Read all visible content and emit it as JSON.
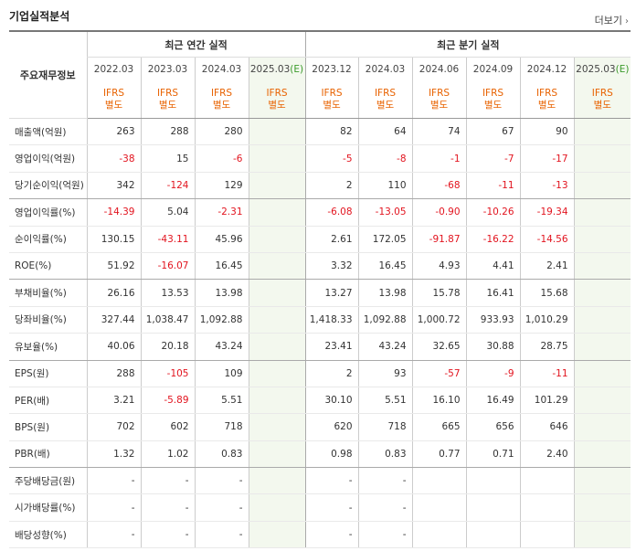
{
  "header": {
    "title": "기업실적분석",
    "more": "더보기",
    "more_arrow": "›"
  },
  "table": {
    "metric_header": "주요재무정보",
    "group_annual": "최근 연간 실적",
    "group_quarter": "최근 분기 실적",
    "periods": [
      {
        "label": "2022.03",
        "acc1": "IFRS",
        "acc2": "별도"
      },
      {
        "label": "2023.03",
        "acc1": "IFRS",
        "acc2": "별도"
      },
      {
        "label": "2024.03",
        "acc1": "IFRS",
        "acc2": "별도"
      },
      {
        "label": "2025.03",
        "est": "(E)",
        "acc1": "IFRS",
        "acc2": "별도"
      },
      {
        "label": "2023.12",
        "acc1": "IFRS",
        "acc2": "별도"
      },
      {
        "label": "2024.03",
        "acc1": "IFRS",
        "acc2": "별도"
      },
      {
        "label": "2024.06",
        "acc1": "IFRS",
        "acc2": "별도"
      },
      {
        "label": "2024.09",
        "acc1": "IFRS",
        "acc2": "별도"
      },
      {
        "label": "2024.12",
        "acc1": "IFRS",
        "acc2": "별도"
      },
      {
        "label": "2025.03",
        "est": "(E)",
        "acc1": "IFRS",
        "acc2": "별도"
      }
    ],
    "rows": [
      {
        "label": "매출액(억원)",
        "values": [
          "263",
          "288",
          "280",
          "",
          "82",
          "64",
          "74",
          "67",
          "90",
          ""
        ]
      },
      {
        "label": "영업이익(억원)",
        "values": [
          "-38",
          "15",
          "-6",
          "",
          "-5",
          "-8",
          "-1",
          "-7",
          "-17",
          ""
        ]
      },
      {
        "label": "당기순이익(억원)",
        "values": [
          "342",
          "-124",
          "129",
          "",
          "2",
          "110",
          "-68",
          "-11",
          "-13",
          ""
        ]
      },
      {
        "label": "영업이익률(%)",
        "values": [
          "-14.39",
          "5.04",
          "-2.31",
          "",
          "-6.08",
          "-13.05",
          "-0.90",
          "-10.26",
          "-19.34",
          ""
        ]
      },
      {
        "label": "순이익률(%)",
        "values": [
          "130.15",
          "-43.11",
          "45.96",
          "",
          "2.61",
          "172.05",
          "-91.87",
          "-16.22",
          "-14.56",
          ""
        ]
      },
      {
        "label": "ROE(%)",
        "values": [
          "51.92",
          "-16.07",
          "16.45",
          "",
          "3.32",
          "16.45",
          "4.93",
          "4.41",
          "2.41",
          ""
        ]
      },
      {
        "label": "부채비율(%)",
        "values": [
          "26.16",
          "13.53",
          "13.98",
          "",
          "13.27",
          "13.98",
          "15.78",
          "16.41",
          "15.68",
          ""
        ]
      },
      {
        "label": "당좌비율(%)",
        "values": [
          "327.44",
          "1,038.47",
          "1,092.88",
          "",
          "1,418.33",
          "1,092.88",
          "1,000.72",
          "933.93",
          "1,010.29",
          ""
        ]
      },
      {
        "label": "유보율(%)",
        "values": [
          "40.06",
          "20.18",
          "43.24",
          "",
          "23.41",
          "43.24",
          "32.65",
          "30.88",
          "28.75",
          ""
        ]
      },
      {
        "label": "EPS(원)",
        "values": [
          "288",
          "-105",
          "109",
          "",
          "2",
          "93",
          "-57",
          "-9",
          "-11",
          ""
        ]
      },
      {
        "label": "PER(배)",
        "values": [
          "3.21",
          "-5.89",
          "5.51",
          "",
          "30.10",
          "5.51",
          "16.10",
          "16.49",
          "101.29",
          ""
        ]
      },
      {
        "label": "BPS(원)",
        "values": [
          "702",
          "602",
          "718",
          "",
          "620",
          "718",
          "665",
          "656",
          "646",
          ""
        ]
      },
      {
        "label": "PBR(배)",
        "values": [
          "1.32",
          "1.02",
          "0.83",
          "",
          "0.98",
          "0.83",
          "0.77",
          "0.71",
          "2.40",
          ""
        ]
      },
      {
        "label": "주당배당금(원)",
        "values": [
          "-",
          "-",
          "-",
          "",
          "-",
          "-",
          "",
          "",
          "",
          ""
        ]
      },
      {
        "label": "시가배당률(%)",
        "values": [
          "-",
          "-",
          "-",
          "",
          "-",
          "-",
          "",
          "",
          "",
          ""
        ]
      },
      {
        "label": "배당성향(%)",
        "values": [
          "-",
          "-",
          "-",
          "",
          "-",
          "-",
          "",
          "",
          "",
          ""
        ]
      }
    ]
  }
}
